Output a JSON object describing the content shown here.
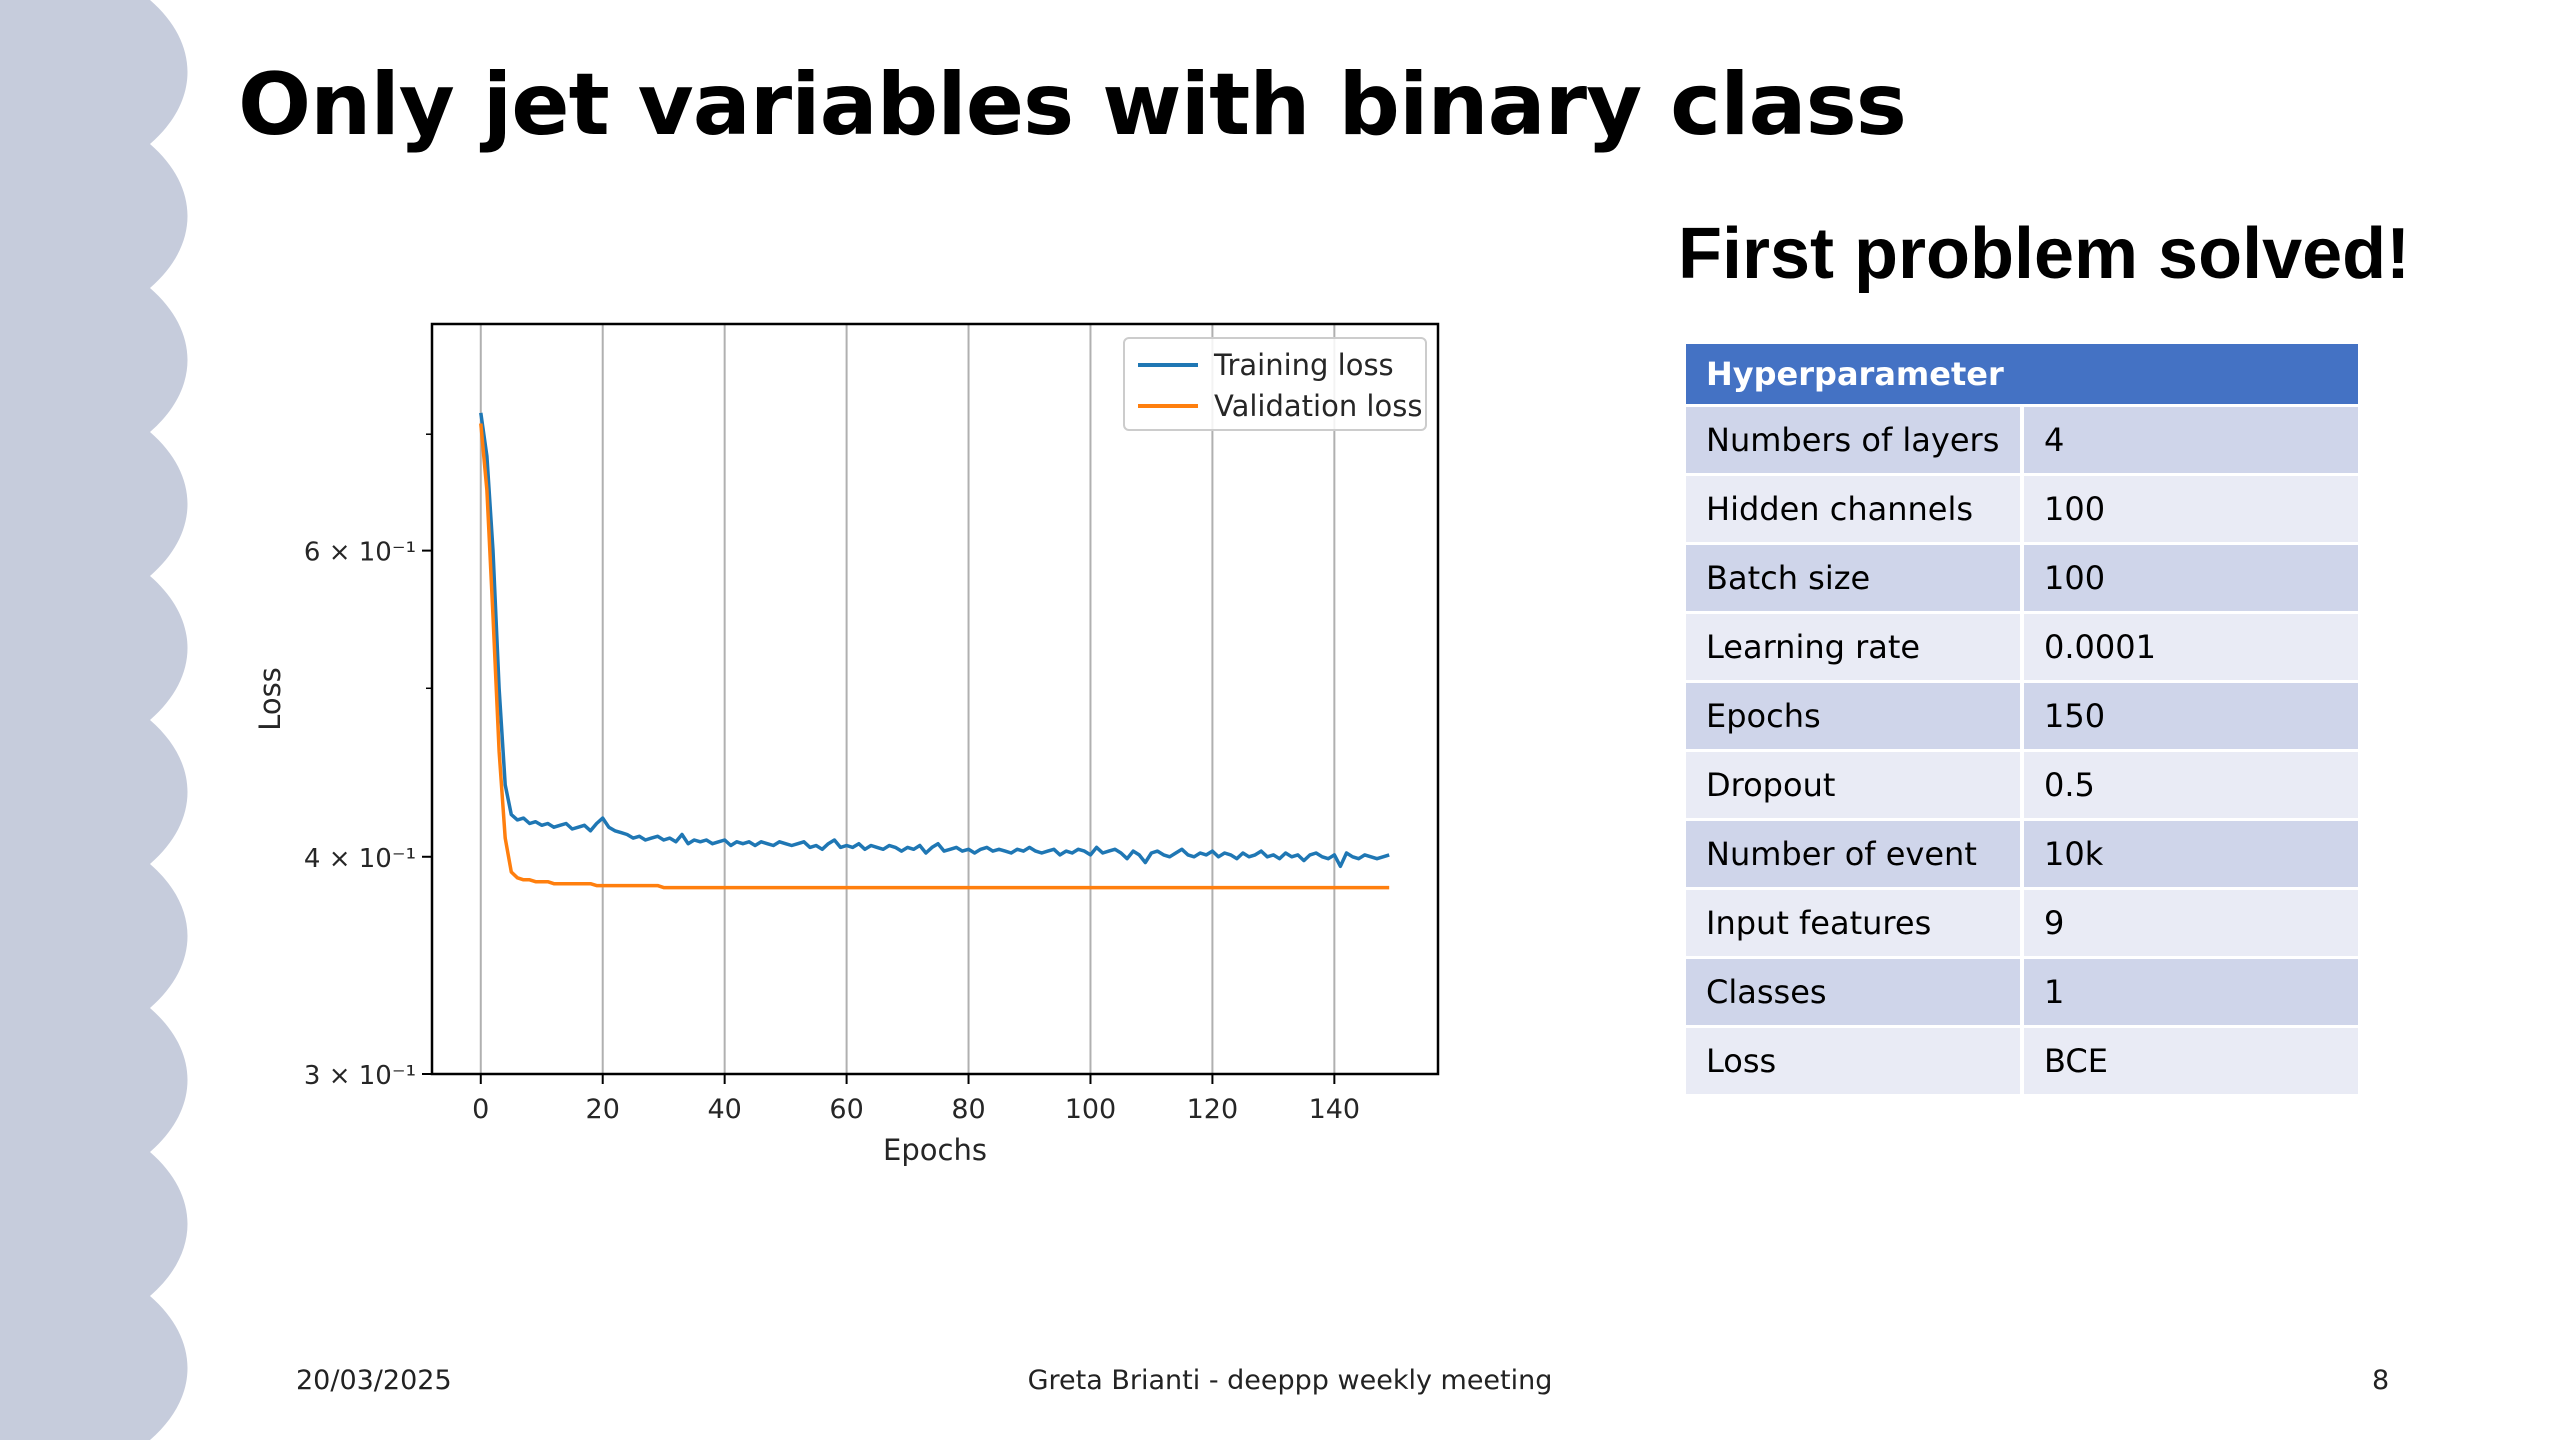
{
  "slide": {
    "title": "Only jet variables with binary class",
    "subtitle": "First problem solved!",
    "footer_date": "20/03/2025",
    "footer_center": "Greta Brianti - deeppp weekly meeting",
    "page_number": "8"
  },
  "table": {
    "header": "Hyperparameter",
    "rows": [
      {
        "name": "Numbers of layers",
        "value": "4"
      },
      {
        "name": "Hidden channels",
        "value": "100"
      },
      {
        "name": "Batch size",
        "value": "100"
      },
      {
        "name": "Learning rate",
        "value": "0.0001"
      },
      {
        "name": "Epochs",
        "value": "150"
      },
      {
        "name": "Dropout",
        "value": "0.5"
      },
      {
        "name": "Number of event",
        "value": "10k"
      },
      {
        "name": "Input features",
        "value": "9"
      },
      {
        "name": "Classes",
        "value": "1"
      },
      {
        "name": "Loss",
        "value": "BCE"
      }
    ]
  },
  "colors": {
    "table_header": "#4472c4",
    "row_odd": "#cfd5ea",
    "row_even": "#e9ebf5",
    "wave": "#c6ccdc",
    "training": "#1f77b4",
    "validation": "#ff7f0e"
  },
  "chart_data": {
    "type": "line",
    "xlabel": "Epochs",
    "ylabel": "Loss",
    "yscale": "log",
    "xlim": [
      -8,
      157
    ],
    "ylim": [
      0.3,
      0.81
    ],
    "xticks": [
      0,
      20,
      40,
      60,
      80,
      100,
      120,
      140
    ],
    "yticks": [
      {
        "value": 0.6,
        "label": "6 × 10⁻¹"
      },
      {
        "value": 0.4,
        "label": "4 × 10⁻¹"
      },
      {
        "value": 0.3,
        "label": "3 × 10⁻¹"
      }
    ],
    "yminor_ticks": [
      0.5,
      0.7
    ],
    "grid": "x",
    "legend_position": "top-right",
    "series": [
      {
        "name": "Training loss",
        "color": "#1f77b4",
        "values": [
          0.72,
          0.68,
          0.6,
          0.5,
          0.44,
          0.423,
          0.42,
          0.421,
          0.418,
          0.419,
          0.417,
          0.418,
          0.416,
          0.417,
          0.418,
          0.415,
          0.416,
          0.417,
          0.414,
          0.418,
          0.421,
          0.416,
          0.414,
          0.413,
          0.412,
          0.41,
          0.411,
          0.409,
          0.41,
          0.411,
          0.409,
          0.41,
          0.408,
          0.412,
          0.407,
          0.409,
          0.408,
          0.409,
          0.407,
          0.408,
          0.409,
          0.406,
          0.408,
          0.407,
          0.408,
          0.406,
          0.408,
          0.407,
          0.406,
          0.408,
          0.407,
          0.406,
          0.407,
          0.408,
          0.405,
          0.406,
          0.404,
          0.407,
          0.409,
          0.405,
          0.406,
          0.405,
          0.407,
          0.404,
          0.406,
          0.405,
          0.404,
          0.406,
          0.405,
          0.403,
          0.405,
          0.404,
          0.406,
          0.402,
          0.405,
          0.407,
          0.403,
          0.404,
          0.405,
          0.403,
          0.404,
          0.402,
          0.404,
          0.405,
          0.403,
          0.404,
          0.403,
          0.402,
          0.404,
          0.403,
          0.405,
          0.403,
          0.402,
          0.403,
          0.404,
          0.401,
          0.403,
          0.402,
          0.404,
          0.403,
          0.401,
          0.405,
          0.402,
          0.403,
          0.404,
          0.402,
          0.399,
          0.403,
          0.401,
          0.397,
          0.402,
          0.403,
          0.401,
          0.4,
          0.402,
          0.404,
          0.401,
          0.4,
          0.402,
          0.401,
          0.403,
          0.4,
          0.402,
          0.401,
          0.399,
          0.402,
          0.4,
          0.401,
          0.403,
          0.4,
          0.401,
          0.399,
          0.402,
          0.4,
          0.401,
          0.398,
          0.401,
          0.402,
          0.4,
          0.399,
          0.401,
          0.395,
          0.402,
          0.4,
          0.399,
          0.401,
          0.4,
          0.399,
          0.4,
          0.401
        ]
      },
      {
        "name": "Validation loss",
        "color": "#ff7f0e",
        "values": [
          0.71,
          0.65,
          0.55,
          0.46,
          0.41,
          0.392,
          0.389,
          0.388,
          0.388,
          0.387,
          0.387,
          0.387,
          0.386,
          0.386,
          0.386,
          0.386,
          0.386,
          0.386,
          0.386,
          0.385,
          0.385,
          0.385,
          0.385,
          0.385,
          0.385,
          0.385,
          0.385,
          0.385,
          0.385,
          0.385,
          0.384,
          0.384,
          0.384,
          0.384,
          0.384,
          0.384,
          0.384,
          0.384,
          0.384,
          0.384,
          0.384,
          0.384,
          0.384,
          0.384,
          0.384,
          0.384,
          0.384,
          0.384,
          0.384,
          0.384,
          0.384,
          0.384,
          0.384,
          0.384,
          0.384,
          0.384,
          0.384,
          0.384,
          0.384,
          0.384,
          0.384,
          0.384,
          0.384,
          0.384,
          0.384,
          0.384,
          0.384,
          0.384,
          0.384,
          0.384,
          0.384,
          0.384,
          0.384,
          0.384,
          0.384,
          0.384,
          0.384,
          0.384,
          0.384,
          0.384,
          0.384,
          0.384,
          0.384,
          0.384,
          0.384,
          0.384,
          0.384,
          0.384,
          0.384,
          0.384,
          0.384,
          0.384,
          0.384,
          0.384,
          0.384,
          0.384,
          0.384,
          0.384,
          0.384,
          0.384,
          0.384,
          0.384,
          0.384,
          0.384,
          0.384,
          0.384,
          0.384,
          0.384,
          0.384,
          0.384,
          0.384,
          0.384,
          0.384,
          0.384,
          0.384,
          0.384,
          0.384,
          0.384,
          0.384,
          0.384,
          0.384,
          0.384,
          0.384,
          0.384,
          0.384,
          0.384,
          0.384,
          0.384,
          0.384,
          0.384,
          0.384,
          0.384,
          0.384,
          0.384,
          0.384,
          0.384,
          0.384,
          0.384,
          0.384,
          0.384,
          0.384,
          0.384,
          0.384,
          0.384,
          0.384,
          0.384,
          0.384,
          0.384,
          0.384,
          0.384
        ]
      }
    ]
  }
}
